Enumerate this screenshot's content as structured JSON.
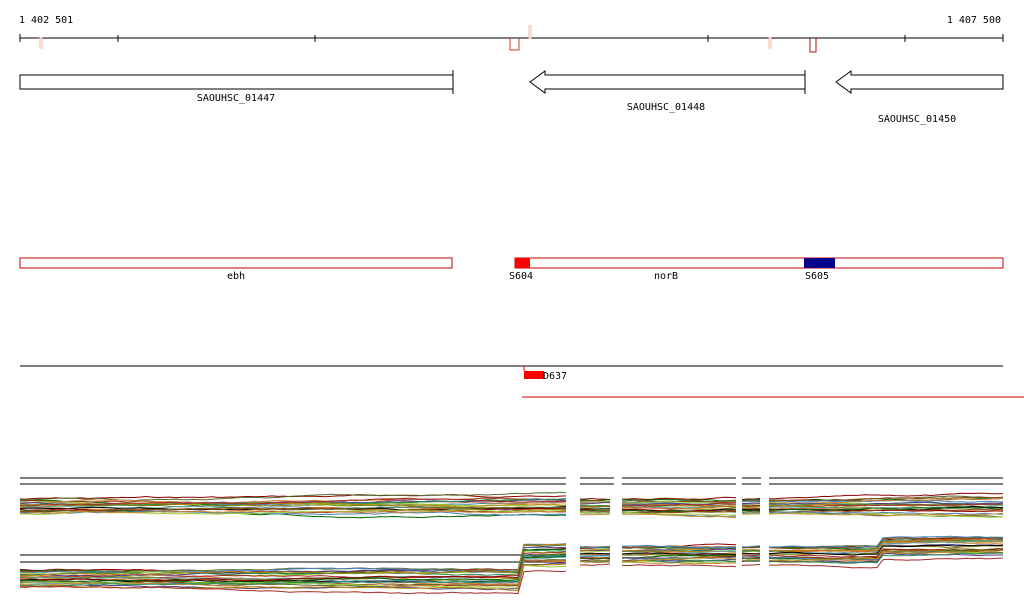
{
  "ruler": {
    "start_label": "1 402 501",
    "end_label": "1 407 500"
  },
  "genes": [
    {
      "name": "SAOUHSC_01447",
      "strand": "+"
    },
    {
      "name": "SAOUHSC_01448",
      "strand": "-"
    },
    {
      "name": "SAOUHSC_01450",
      "strand": "-"
    }
  ],
  "features": [
    {
      "name": "ebh"
    },
    {
      "name": "norB"
    }
  ],
  "sites": [
    {
      "name": "S604",
      "color": "#ff0000"
    },
    {
      "name": "S605",
      "color": "#00008b"
    }
  ],
  "transcript_mark": {
    "name": "D637",
    "color": "#ff0000"
  },
  "colors": {
    "feature_outline": "#cc0000",
    "site_red": "#ff0000",
    "site_blue": "#00008b",
    "expression_palette": [
      "#8b0000",
      "#006400",
      "#556b2f",
      "#8b4513",
      "#4682b4",
      "#9acd32",
      "#cd853f",
      "#483d8b",
      "#2e8b57",
      "#b8860b",
      "#a52a2a",
      "#808000",
      "#5f9ea0",
      "#d2691e",
      "#000000"
    ]
  }
}
